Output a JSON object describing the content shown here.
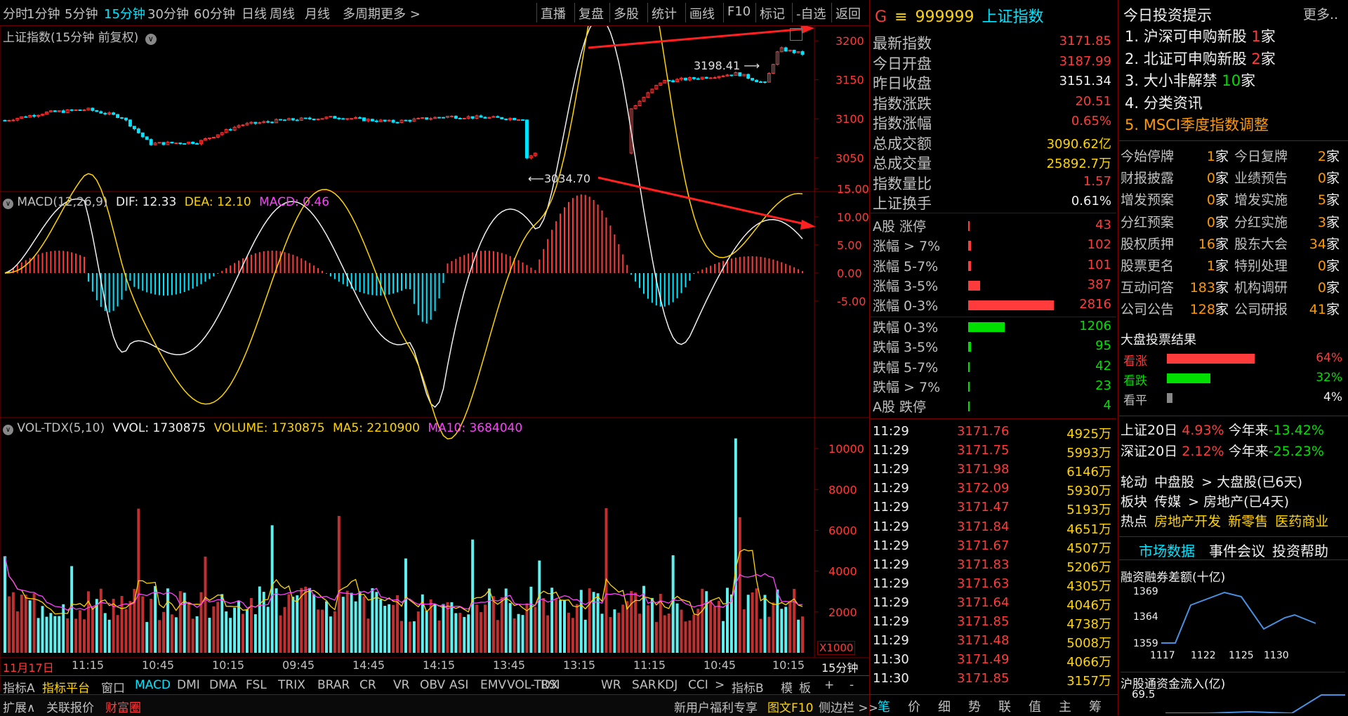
{
  "toolbar": {
    "periods": [
      "分时",
      "1分钟",
      "5分钟",
      "15分钟",
      "30分钟",
      "60分钟",
      "日线",
      "周线",
      "月线",
      "多周期",
      "更多 >"
    ],
    "selected_period": "15分钟",
    "actions": [
      "直播",
      "复盘",
      "多股",
      "统计",
      "画线",
      "F10",
      "标记",
      "-自选",
      "返回"
    ]
  },
  "chart_main": {
    "title": "上证指数(15分钟 前复权)",
    "y_ticks": [
      "3200",
      "3150",
      "3100",
      "3050"
    ],
    "high_label": "3198.41",
    "low_label": "3034.70"
  },
  "chart_macd": {
    "name": "MACD(12,26,9)",
    "dif": "DIF: 12.33",
    "dea": "DEA: 12.10",
    "macd": "MACD: 0.46",
    "y_ticks": [
      "15.00",
      "10.00",
      "5.00",
      "0.00",
      "-5.00"
    ]
  },
  "chart_vol": {
    "name": "VOL-TDX(5,10)",
    "vvol": "VVOL: 1730875",
    "volume": "VOLUME: 1730875",
    "ma5": "MA5: 2210900",
    "ma10": "MA10: 3684040",
    "y_ticks": [
      "10000",
      "8000",
      "6000",
      "4000",
      "2000"
    ],
    "unit": "X1000"
  },
  "x_axis": {
    "labels": [
      "11月17日",
      "11:15",
      "10:45",
      "10:15",
      "09:45",
      "14:45",
      "14:15",
      "13:45",
      "13:15",
      "11:15",
      "10:45",
      "10:15"
    ],
    "period_label": "15分钟"
  },
  "indicator_tabs": [
    "指标A",
    "指标平台",
    "窗口",
    "MACD",
    "DMI",
    "DMA",
    "FSL",
    "TRIX",
    "BRAR",
    "CR",
    "VR",
    "OBV",
    "ASI",
    "EMV",
    "VOL-TDX",
    "RSI",
    "WR",
    "SAR",
    "KDJ",
    "CCI",
    ">",
    "指标B",
    "模",
    "板",
    "+",
    "-"
  ],
  "bottom_bar": {
    "expand": "扩展∧",
    "related": "关联报价",
    "wealth": "财富圈",
    "promo": "新用户福利专享",
    "f10": "图文F10",
    "sidebar": "侧边栏 >>"
  },
  "quote": {
    "marker": "G",
    "menu_glyph": "≡",
    "code": "999999",
    "name": "上证指数",
    "rows": [
      {
        "label": "最新指数",
        "value": "3171.85",
        "color": "red"
      },
      {
        "label": "今日开盘",
        "value": "3187.99",
        "color": "red"
      },
      {
        "label": "昨日收盘",
        "value": "3151.34",
        "color": "white"
      },
      {
        "label": "指数涨跌",
        "value": "20.51",
        "color": "red"
      },
      {
        "label": "指数涨幅",
        "value": "0.65%",
        "color": "red"
      },
      {
        "label": "总成交额",
        "value": "3090.62亿",
        "color": "yel"
      },
      {
        "label": "总成交量",
        "value": "25892.7万",
        "color": "yel"
      },
      {
        "label": "指数量比",
        "value": "1.57",
        "color": "red"
      },
      {
        "label": "上证换手",
        "value": "0.61%",
        "color": "white"
      }
    ],
    "dist": [
      {
        "label": "A股 涨停",
        "value": "43",
        "bar": 0.015,
        "color": "red"
      },
      {
        "label": "涨幅 > 7%",
        "value": "102",
        "bar": 0.036,
        "color": "red"
      },
      {
        "label": "涨幅 5-7%",
        "value": "101",
        "bar": 0.036,
        "color": "red"
      },
      {
        "label": "涨幅 3-5%",
        "value": "387",
        "bar": 0.137,
        "color": "red"
      },
      {
        "label": "涨幅 0-3%",
        "value": "2816",
        "bar": 1.0,
        "color": "red"
      },
      {
        "label": "跌幅 0-3%",
        "value": "1206",
        "bar": 0.43,
        "color": "green"
      },
      {
        "label": "跌幅 3-5%",
        "value": "95",
        "bar": 0.034,
        "color": "green"
      },
      {
        "label": "跌幅 5-7%",
        "value": "42",
        "bar": 0.015,
        "color": "green"
      },
      {
        "label": "跌幅 > 7%",
        "value": "23",
        "bar": 0.01,
        "color": "green"
      },
      {
        "label": "A股 跌停",
        "value": "4",
        "bar": 0.005,
        "color": "green"
      }
    ],
    "ticks": [
      {
        "t": "11:29",
        "p": "3171.76",
        "v": "4925万"
      },
      {
        "t": "11:29",
        "p": "3171.75",
        "v": "5993万"
      },
      {
        "t": "11:29",
        "p": "3171.98",
        "v": "6146万"
      },
      {
        "t": "11:29",
        "p": "3172.09",
        "v": "5930万"
      },
      {
        "t": "11:29",
        "p": "3171.47",
        "v": "5193万"
      },
      {
        "t": "11:29",
        "p": "3171.84",
        "v": "4651万"
      },
      {
        "t": "11:29",
        "p": "3171.67",
        "v": "4507万"
      },
      {
        "t": "11:29",
        "p": "3171.83",
        "v": "5206万"
      },
      {
        "t": "11:29",
        "p": "3171.63",
        "v": "4305万"
      },
      {
        "t": "11:29",
        "p": "3171.64",
        "v": "4046万"
      },
      {
        "t": "11:29",
        "p": "3171.85",
        "v": "4738万"
      },
      {
        "t": "11:29",
        "p": "3171.48",
        "v": "5008万"
      },
      {
        "t": "11:30",
        "p": "3171.49",
        "v": "4066万"
      },
      {
        "t": "11:30",
        "p": "3171.85",
        "v": "3157万"
      }
    ],
    "tabs": [
      "笔",
      "价",
      "细",
      "势",
      "联",
      "值",
      "主",
      "筹"
    ]
  },
  "side": {
    "title": "今日投资提示",
    "more": "更多..",
    "tips": [
      {
        "text": "1. 沪深可申购新股",
        "num": "1",
        "unit": "家",
        "numcolor": "red"
      },
      {
        "text": "2. 北证可申购新股",
        "num": "2",
        "unit": "家",
        "numcolor": "red"
      },
      {
        "text": "3. 大小非解禁",
        "num": "10",
        "unit": "家",
        "numcolor": "green"
      },
      {
        "text": "4. 分类资讯",
        "num": "",
        "unit": "",
        "numcolor": "white"
      },
      {
        "text": "5. MSCI季度指数调整",
        "num": "",
        "unit": "",
        "numcolor": "org"
      }
    ],
    "grid": [
      [
        "今始停牌",
        "1",
        "今日复牌",
        "2"
      ],
      [
        "财报披露",
        "0",
        "业绩预告",
        "0"
      ],
      [
        "增发预案",
        "0",
        "增发实施",
        "5"
      ],
      [
        "分红预案",
        "0",
        "分红实施",
        "3"
      ],
      [
        "股权质押",
        "16",
        "股东大会",
        "34"
      ],
      [
        "股票更名",
        "1",
        "特别处理",
        "0"
      ],
      [
        "互动问答",
        "183",
        "机构调研",
        "0"
      ],
      [
        "公司公告",
        "128",
        "公司研报",
        "41"
      ]
    ],
    "grid_unit": "家",
    "vote_title": "大盘投票结果",
    "votes": [
      {
        "label": "看涨",
        "pct": "64%",
        "value": 0.64,
        "color": "red"
      },
      {
        "label": "看跌",
        "pct": "32%",
        "value": 0.32,
        "color": "green"
      },
      {
        "label": "看平",
        "pct": "4%",
        "value": 0.04,
        "color": "gray"
      }
    ],
    "perf": [
      {
        "name": "上证20日",
        "v1": "4.93%",
        "ylabel": "今年来",
        "v2": "-13.42%"
      },
      {
        "name": "深证20日",
        "v1": "2.12%",
        "ylabel": "今年来",
        "v2": "-25.23%"
      }
    ],
    "rotation": {
      "label": "轮动",
      "from": "中盘股",
      "to": "> 大盘股(已6天)"
    },
    "sector": {
      "label": "板块",
      "from": "传媒",
      "to": "> 房地产(已4天)"
    },
    "hot": {
      "label": "热点",
      "items": [
        "房地产开发",
        "新零售",
        "医药商业"
      ]
    },
    "tabs": [
      "市场数据",
      "事件会议",
      "投资帮助"
    ],
    "margin_title": "融资融券差额(十亿)",
    "margin_y": [
      "1369",
      "1364",
      "1359"
    ],
    "margin_x": [
      "1117",
      "1122",
      "1125",
      "1130"
    ],
    "hk_title": "沪股通资金流入(亿)",
    "hk_value": "69.5"
  }
}
